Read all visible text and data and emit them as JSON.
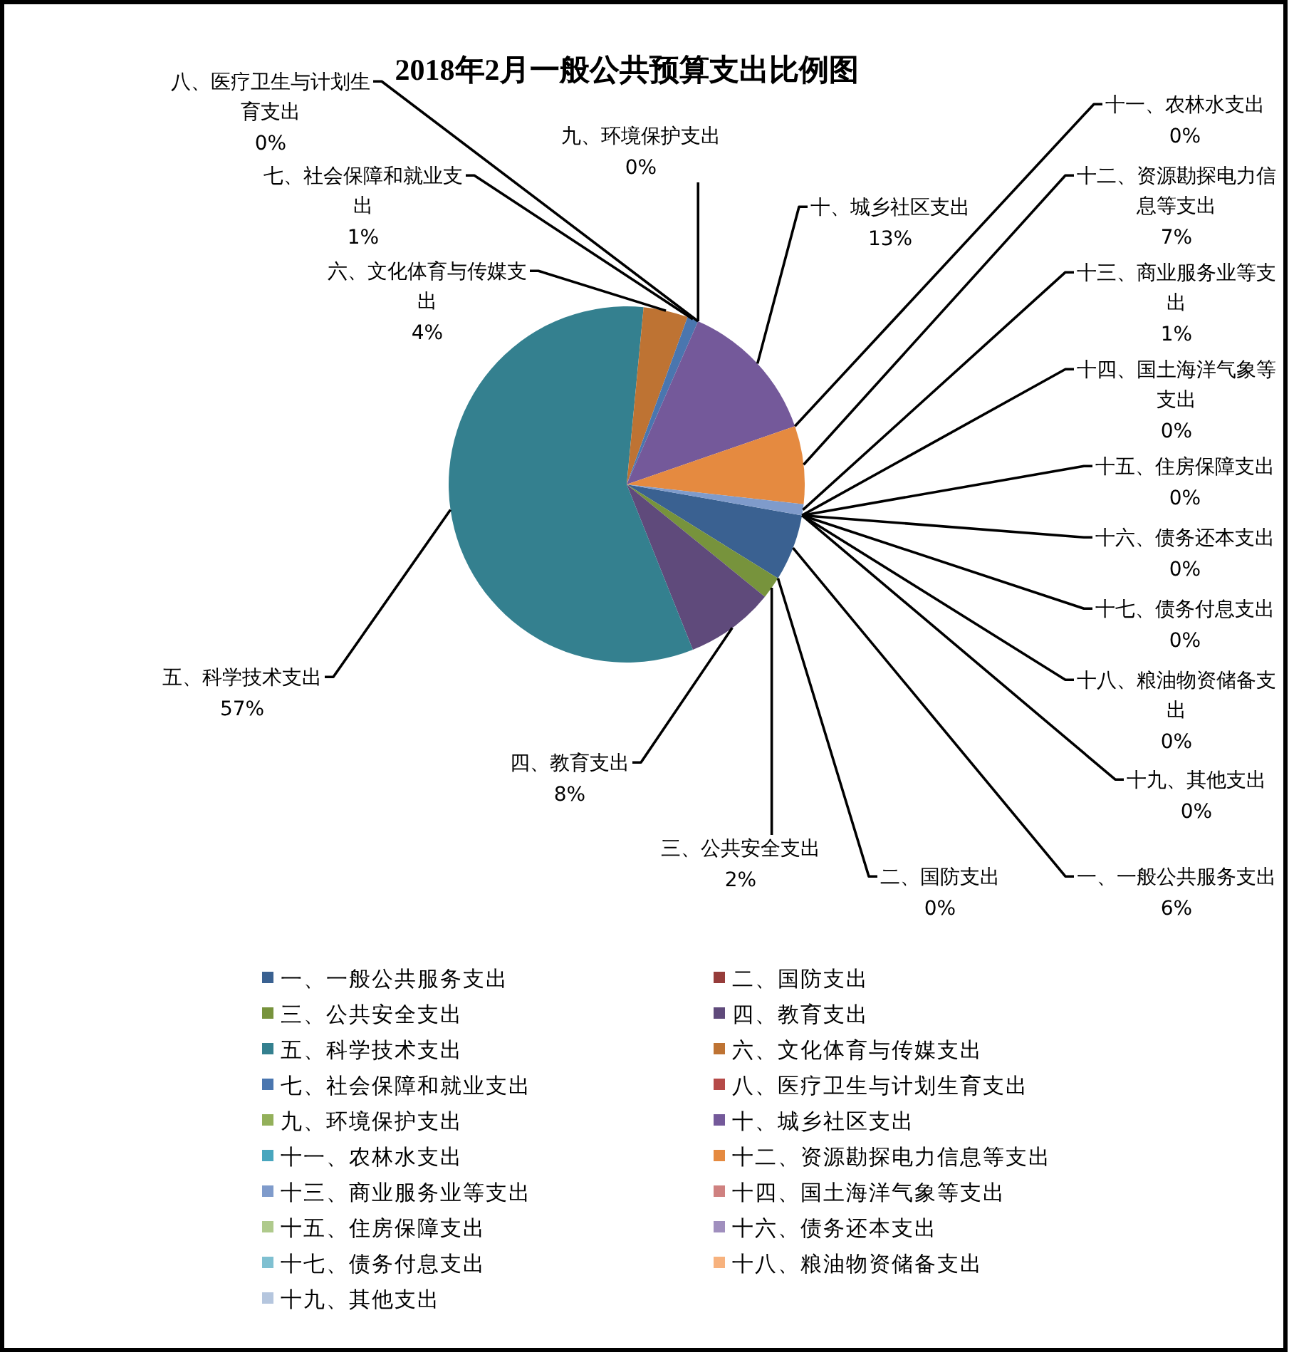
{
  "chart_data": {
    "type": "pie",
    "title": "2018年2月一般公共预算支出比例图",
    "categories": [
      "一、一般公共服务支出",
      "二、国防支出",
      "三、公共安全支出",
      "四、教育支出",
      "五、科学技术支出",
      "六、文化体育与传媒支出",
      "七、社会保障和就业支出",
      "八、医疗卫生与计划生育支出",
      "九、环境保护支出",
      "十、城乡社区支出",
      "十一、农林水支出",
      "十二、资源勘探电力信息等支出",
      "十三、商业服务业等支出",
      "十四、国土海洋气象等支出",
      "十五、住房保障支出",
      "十六、债务还本支出",
      "十七、债务付息支出",
      "十八、粮油物资储备支出",
      "十九、其他支出"
    ],
    "values": [
      6,
      0,
      2,
      8,
      57,
      4,
      1,
      0,
      0,
      13,
      0,
      7,
      1,
      0,
      0,
      0,
      0,
      0,
      0
    ],
    "value_labels": [
      "6%",
      "0%",
      "2%",
      "8%",
      "57%",
      "4%",
      "1%",
      "0%",
      "0%",
      "13%",
      "0%",
      "7%",
      "1%",
      "0%",
      "0%",
      "0%",
      "0%",
      "0%",
      "0%"
    ],
    "colors": [
      "#3A6191",
      "#963C3A",
      "#77933C",
      "#5F4A7B",
      "#34808F",
      "#BE7333",
      "#4A76AF",
      "#B54A48",
      "#93B05A",
      "#74599A",
      "#48A6BE",
      "#E58A40",
      "#7F9BCB",
      "#CF8180",
      "#AFCA8C",
      "#A08FBE",
      "#7FC0D1",
      "#F7B27E",
      "#B5C6DE"
    ],
    "legend": "bottom"
  }
}
